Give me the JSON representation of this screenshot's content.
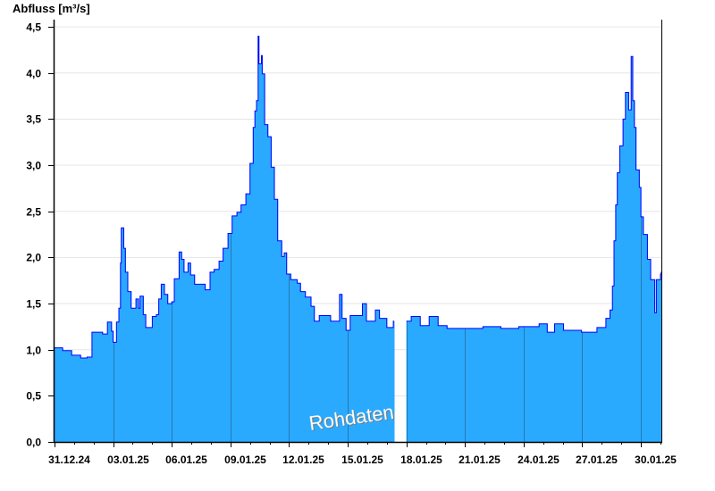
{
  "chart_data": {
    "type": "area",
    "ylabel": "Abfluss [m³/s]",
    "ylim": [
      0,
      4.5
    ],
    "y_ticks": [
      0,
      0.5,
      1.0,
      1.5,
      2.0,
      2.5,
      3.0,
      3.5,
      4.0,
      4.5
    ],
    "y_tick_labels": [
      "0,0",
      "0,5",
      "1,0",
      "1,5",
      "2,0",
      "2,5",
      "3,0",
      "3,5",
      "4,0",
      "4,5"
    ],
    "xlim": [
      "2024-12-31T00:00",
      "2025-01-31T01:00"
    ],
    "x_ticks": [
      "2024-12-31",
      "2025-01-03",
      "2025-01-06",
      "2025-01-09",
      "2025-01-12",
      "2025-01-15",
      "2025-01-18",
      "2025-01-21",
      "2025-01-24",
      "2025-01-27",
      "2025-01-30"
    ],
    "x_tick_labels": [
      "31.12.24",
      "03.01.25",
      "06.01.25",
      "09.01.25",
      "12.01.25",
      "15.01.25",
      "18.01.25",
      "21.01.25",
      "24.01.25",
      "27.01.25",
      "30.01.25"
    ],
    "grid": true,
    "watermark": "Rohdaten",
    "colors": {
      "fill": "#2aaaff",
      "line": "#0000ff",
      "grid": "#e6e6e6",
      "day_lines": "#1f5f8a"
    },
    "points": [
      [
        "2024-12-31T00:00",
        1.02
      ],
      [
        "2024-12-31T10:00",
        0.99
      ],
      [
        "2024-12-31T21:00",
        0.94
      ],
      [
        "2025-01-01T08:00",
        0.91
      ],
      [
        "2025-01-01T16:00",
        0.92
      ],
      [
        "2025-01-01T22:00",
        1.19
      ],
      [
        "2025-01-02T11:00",
        1.17
      ],
      [
        "2025-01-02T17:00",
        1.3
      ],
      [
        "2025-01-02T22:00",
        1.2
      ],
      [
        "2025-01-03T00:00",
        1.08
      ],
      [
        "2025-01-03T04:00",
        1.3
      ],
      [
        "2025-01-03T07:00",
        1.45
      ],
      [
        "2025-01-03T09:00",
        1.94
      ],
      [
        "2025-01-03T10:00",
        2.32
      ],
      [
        "2025-01-03T13:00",
        2.1
      ],
      [
        "2025-01-03T15:00",
        1.84
      ],
      [
        "2025-01-03T18:00",
        1.63
      ],
      [
        "2025-01-03T22:00",
        1.45
      ],
      [
        "2025-01-04T04:00",
        1.55
      ],
      [
        "2025-01-04T07:00",
        1.45
      ],
      [
        "2025-01-04T09:00",
        1.58
      ],
      [
        "2025-01-04T13:00",
        1.38
      ],
      [
        "2025-01-04T16:00",
        1.24
      ],
      [
        "2025-01-05T00:00",
        1.36
      ],
      [
        "2025-01-05T05:00",
        1.38
      ],
      [
        "2025-01-05T08:00",
        1.55
      ],
      [
        "2025-01-05T11:00",
        1.71
      ],
      [
        "2025-01-05T15:00",
        1.6
      ],
      [
        "2025-01-05T19:00",
        1.5
      ],
      [
        "2025-01-06T00:00",
        1.52
      ],
      [
        "2025-01-06T03:00",
        1.77
      ],
      [
        "2025-01-06T09:00",
        2.06
      ],
      [
        "2025-01-06T12:00",
        1.98
      ],
      [
        "2025-01-06T15:00",
        1.84
      ],
      [
        "2025-01-06T20:00",
        1.94
      ],
      [
        "2025-01-06T23:00",
        1.81
      ],
      [
        "2025-01-07T04:00",
        1.71
      ],
      [
        "2025-01-07T12:00",
        1.71
      ],
      [
        "2025-01-07T17:00",
        1.65
      ],
      [
        "2025-01-07T23:00",
        1.84
      ],
      [
        "2025-01-08T04:00",
        1.87
      ],
      [
        "2025-01-08T10:00",
        1.96
      ],
      [
        "2025-01-08T15:00",
        2.1
      ],
      [
        "2025-01-08T21:00",
        2.26
      ],
      [
        "2025-01-09T02:00",
        2.45
      ],
      [
        "2025-01-09T08:00",
        2.49
      ],
      [
        "2025-01-09T13:00",
        2.57
      ],
      [
        "2025-01-09T19:00",
        2.69
      ],
      [
        "2025-01-10T00:00",
        3.02
      ],
      [
        "2025-01-10T04:00",
        3.41
      ],
      [
        "2025-01-10T06:00",
        3.59
      ],
      [
        "2025-01-10T08:00",
        3.7
      ],
      [
        "2025-01-10T10:00",
        4.4
      ],
      [
        "2025-01-10T11:00",
        4.1
      ],
      [
        "2025-01-10T14:00",
        4.19
      ],
      [
        "2025-01-10T15:00",
        3.99
      ],
      [
        "2025-01-10T18:00",
        3.44
      ],
      [
        "2025-01-10T22:00",
        3.31
      ],
      [
        "2025-01-11T02:00",
        2.98
      ],
      [
        "2025-01-11T06:00",
        2.63
      ],
      [
        "2025-01-11T10:00",
        2.18
      ],
      [
        "2025-01-11T15:00",
        2.01
      ],
      [
        "2025-01-11T18:00",
        2.05
      ],
      [
        "2025-01-11T21:00",
        1.82
      ],
      [
        "2025-01-12T02:00",
        1.76
      ],
      [
        "2025-01-12T10:00",
        1.72
      ],
      [
        "2025-01-12T14:00",
        1.63
      ],
      [
        "2025-01-12T20:00",
        1.57
      ],
      [
        "2025-01-13T03:00",
        1.47
      ],
      [
        "2025-01-13T07:00",
        1.31
      ],
      [
        "2025-01-13T13:00",
        1.37
      ],
      [
        "2025-01-14T03:00",
        1.31
      ],
      [
        "2025-01-14T14:00",
        1.6
      ],
      [
        "2025-01-14T17:00",
        1.34
      ],
      [
        "2025-01-14T22:00",
        1.21
      ],
      [
        "2025-01-15T03:00",
        1.37
      ],
      [
        "2025-01-15T12:00",
        1.37
      ],
      [
        "2025-01-15T18:00",
        1.5
      ],
      [
        "2025-01-15T23:00",
        1.31
      ],
      [
        "2025-01-16T10:00",
        1.43
      ],
      [
        "2025-01-16T15:00",
        1.34
      ],
      [
        "2025-01-17T00:00",
        1.24
      ],
      [
        "2025-01-17T08:00",
        1.31
      ],
      [
        "2025-01-17T09:00",
        null
      ],
      [
        "2025-01-18T00:00",
        1.31
      ],
      [
        "2025-01-18T06:00",
        1.36
      ],
      [
        "2025-01-18T17:00",
        1.26
      ],
      [
        "2025-01-19T04:00",
        1.36
      ],
      [
        "2025-01-19T15:00",
        1.26
      ],
      [
        "2025-01-20T02:00",
        1.23
      ],
      [
        "2025-01-21T00:00",
        1.23
      ],
      [
        "2025-01-21T22:00",
        1.25
      ],
      [
        "2025-01-22T20:00",
        1.23
      ],
      [
        "2025-01-23T18:00",
        1.25
      ],
      [
        "2025-01-24T19:00",
        1.28
      ],
      [
        "2025-01-25T05:00",
        1.19
      ],
      [
        "2025-01-25T14:00",
        1.28
      ],
      [
        "2025-01-26T01:00",
        1.21
      ],
      [
        "2025-01-26T23:00",
        1.19
      ],
      [
        "2025-01-27T13:00",
        1.19
      ],
      [
        "2025-01-27T18:00",
        1.24
      ],
      [
        "2025-01-28T05:00",
        1.34
      ],
      [
        "2025-01-28T10:00",
        1.43
      ],
      [
        "2025-01-28T13:00",
        1.69
      ],
      [
        "2025-01-28T15:00",
        2.18
      ],
      [
        "2025-01-28T17:00",
        2.57
      ],
      [
        "2025-01-28T19:00",
        2.92
      ],
      [
        "2025-01-28T22:00",
        3.21
      ],
      [
        "2025-01-29T02:00",
        3.5
      ],
      [
        "2025-01-29T05:00",
        3.79
      ],
      [
        "2025-01-29T09:00",
        3.6
      ],
      [
        "2025-01-29T12:00",
        4.18
      ],
      [
        "2025-01-29T14:00",
        3.7
      ],
      [
        "2025-01-29T16:00",
        3.41
      ],
      [
        "2025-01-29T18:00",
        2.95
      ],
      [
        "2025-01-29T22:00",
        2.76
      ],
      [
        "2025-01-30T00:00",
        2.44
      ],
      [
        "2025-01-30T03:00",
        2.25
      ],
      [
        "2025-01-30T08:00",
        1.98
      ],
      [
        "2025-01-30T12:00",
        1.76
      ],
      [
        "2025-01-30T17:00",
        1.4
      ],
      [
        "2025-01-30T19:00",
        1.76
      ],
      [
        "2025-01-31T00:00",
        1.82
      ],
      [
        "2025-01-31T01:00",
        1.84
      ]
    ]
  }
}
